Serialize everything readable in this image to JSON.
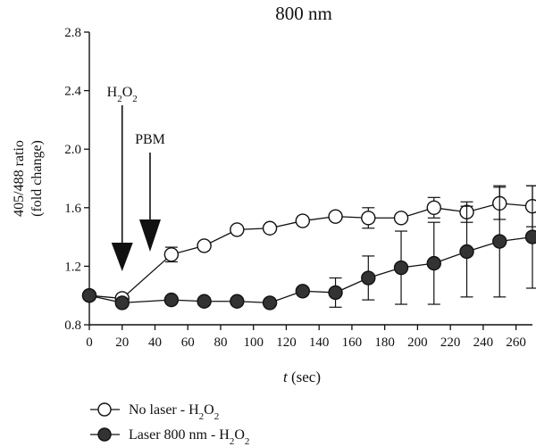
{
  "chart_data": {
    "type": "line",
    "title": "800 nm",
    "xlabel": {
      "italic": "t",
      "rest": " (sec)"
    },
    "ylabel": [
      "405/488 ratio",
      "(fold change)"
    ],
    "xlim": [
      0,
      270
    ],
    "ylim": [
      0.8,
      2.8
    ],
    "xticks": [
      0,
      20,
      40,
      60,
      80,
      100,
      120,
      140,
      160,
      180,
      200,
      220,
      240,
      260
    ],
    "yticks": [
      0.8,
      1.2,
      1.6,
      2.0,
      2.4,
      2.8
    ],
    "ytick_labels": [
      "0.8",
      "1.2",
      "1.6",
      "2.0",
      "2.4",
      "2.8"
    ],
    "series": [
      {
        "name": {
          "pre": "No laser - H",
          "sub": "2",
          "mid": "O",
          "sub2": "2"
        },
        "marker": "open-circle",
        "x": [
          0,
          20,
          50,
          70,
          90,
          110,
          130,
          150,
          170,
          190,
          210,
          230,
          250,
          270
        ],
        "y": [
          1.0,
          0.98,
          1.28,
          1.34,
          1.45,
          1.46,
          1.51,
          1.54,
          1.53,
          1.53,
          1.6,
          1.57,
          1.63,
          1.61
        ],
        "err": [
          0,
          0,
          0.05,
          0,
          0,
          0,
          0,
          0,
          0.07,
          0,
          0.07,
          0.07,
          0.11,
          0.14
        ]
      },
      {
        "name": {
          "pre": "Laser 800 nm - H",
          "sub": "2",
          "mid": "O",
          "sub2": "2"
        },
        "marker": "filled-circle",
        "x": [
          0,
          20,
          50,
          70,
          90,
          110,
          130,
          150,
          170,
          190,
          210,
          230,
          250,
          270
        ],
        "y": [
          1.0,
          0.95,
          0.97,
          0.96,
          0.96,
          0.95,
          1.03,
          1.02,
          1.12,
          1.19,
          1.22,
          1.3,
          1.37,
          1.4
        ],
        "err": [
          0,
          0,
          0,
          0,
          0,
          0,
          0,
          0.1,
          0.15,
          0.25,
          0.28,
          0.31,
          0.38,
          0.35
        ]
      }
    ],
    "annotations": [
      {
        "label": {
          "pre": "H",
          "sub": "2",
          "mid": "O",
          "sub2": "2"
        },
        "x": 20
      },
      {
        "label": {
          "pre": "PBM"
        },
        "x": 37
      }
    ],
    "legend_position": "bottom-left",
    "grid": false
  }
}
